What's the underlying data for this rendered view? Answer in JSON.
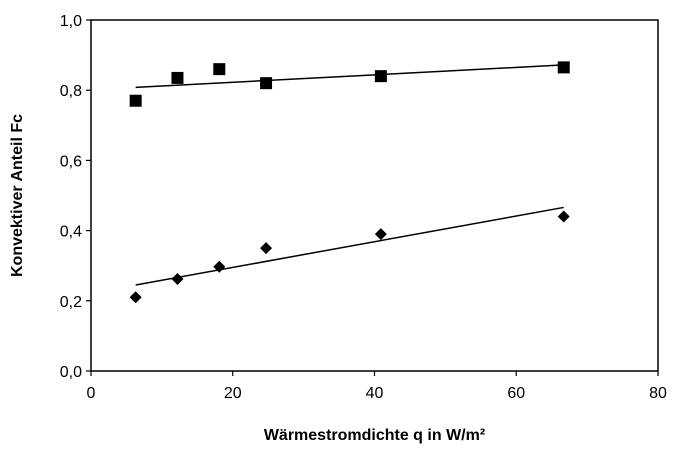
{
  "chart_data": {
    "type": "scatter",
    "title": "",
    "xlabel": "Wärmestromdichte q in W/m²",
    "ylabel": "Konvektiver Anteil Fc",
    "xlim": [
      0,
      80
    ],
    "ylim": [
      0.0,
      1.0
    ],
    "x_ticks": [
      "0",
      "20",
      "40",
      "60",
      "80"
    ],
    "y_ticks": [
      "0,0",
      "0,2",
      "0,4",
      "0,6",
      "0,8",
      "1,0"
    ],
    "grid": false,
    "legend": "none",
    "series": [
      {
        "marker": "square",
        "x": [
          6.3,
          12.2,
          18.1,
          24.7,
          40.9,
          66.7
        ],
        "y": [
          0.77,
          0.835,
          0.86,
          0.82,
          0.84,
          0.865
        ],
        "trendline": {
          "x": [
            6.3,
            66.7
          ],
          "y": [
            0.808,
            0.872
          ]
        }
      },
      {
        "marker": "diamond",
        "x": [
          6.3,
          12.2,
          18.1,
          24.7,
          40.9,
          66.7
        ],
        "y": [
          0.21,
          0.262,
          0.297,
          0.35,
          0.39,
          0.44
        ],
        "trendline": {
          "x": [
            6.3,
            66.7
          ],
          "y": [
            0.245,
            0.466
          ]
        }
      }
    ]
  }
}
